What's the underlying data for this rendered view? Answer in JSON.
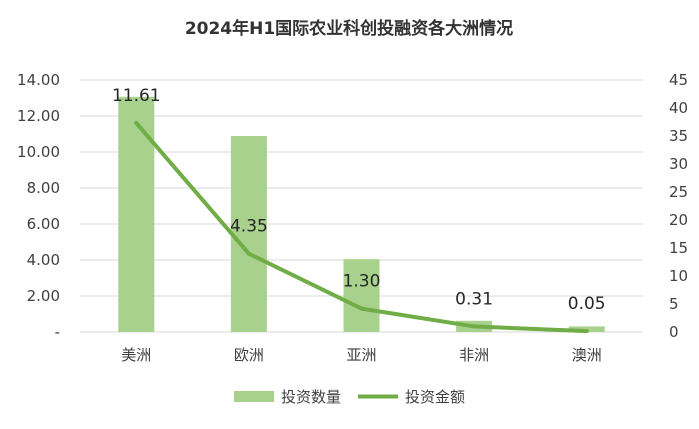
{
  "chart_data": {
    "type": "bar+line",
    "title": "2024年H1国际农业科创投融资各大洲情况",
    "categories": [
      "美洲",
      "欧洲",
      "亚洲",
      "非洲",
      "澳洲"
    ],
    "series": [
      {
        "name": "投资数量",
        "type": "bar",
        "axis": "right",
        "values": [
          42,
          35,
          13,
          2,
          1
        ],
        "color": "#a9d18e"
      },
      {
        "name": "投资金额",
        "type": "line",
        "axis": "left",
        "values": [
          11.61,
          4.35,
          1.3,
          0.31,
          0.05
        ],
        "labels": [
          "11.61",
          "4.35",
          "1.30",
          "0.31",
          "0.05"
        ],
        "color": "#70ad47"
      }
    ],
    "y_left": {
      "range": [
        0,
        14
      ],
      "ticks": [
        "-",
        "2.00",
        "4.00",
        "6.00",
        "8.00",
        "10.00",
        "12.00",
        "14.00"
      ]
    },
    "y_right": {
      "range": [
        0,
        45
      ],
      "ticks": [
        "0",
        "5",
        "10",
        "15",
        "20",
        "25",
        "30",
        "35",
        "40",
        "45"
      ]
    },
    "grid": true,
    "legend": "bottom"
  }
}
